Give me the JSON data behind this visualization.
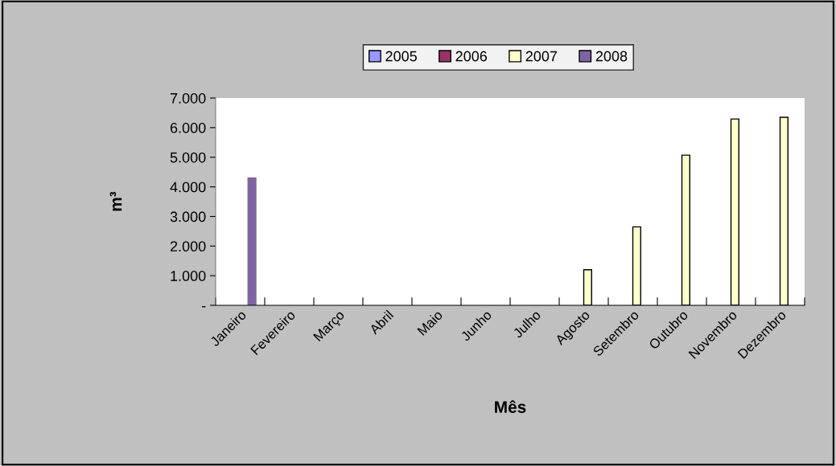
{
  "chart_data": {
    "type": "bar",
    "xlabel": "Mês",
    "ylabel": "m³",
    "categories": [
      "Janeiro",
      "Fevereiro",
      "Março",
      "Abril",
      "Maio",
      "Junho",
      "Julho",
      "Agosto",
      "Setembro",
      "Outubro",
      "Novembro",
      "Dezembro"
    ],
    "series": [
      {
        "name": "2005",
        "color": "#9999ff",
        "values": [
          null,
          null,
          null,
          null,
          null,
          null,
          null,
          null,
          null,
          null,
          null,
          null
        ]
      },
      {
        "name": "2006",
        "color": "#993366",
        "values": [
          null,
          null,
          null,
          null,
          null,
          null,
          null,
          null,
          null,
          null,
          null,
          null
        ]
      },
      {
        "name": "2007",
        "color": "#ffffcc",
        "values": [
          null,
          null,
          null,
          null,
          null,
          null,
          null,
          1200,
          2650,
          5070,
          6290,
          6350
        ]
      },
      {
        "name": "2008",
        "color": "#8064a2",
        "values": [
          4300,
          null,
          null,
          null,
          null,
          null,
          null,
          null,
          null,
          null,
          null,
          null
        ]
      }
    ],
    "ylim": [
      0,
      7000
    ],
    "yticks": [
      {
        "value": 0,
        "label": "-"
      },
      {
        "value": 1000,
        "label": "1.000"
      },
      {
        "value": 2000,
        "label": "2.000"
      },
      {
        "value": 3000,
        "label": "3.000"
      },
      {
        "value": 4000,
        "label": "4.000"
      },
      {
        "value": 5000,
        "label": "5.000"
      },
      {
        "value": 6000,
        "label": "6.000"
      },
      {
        "value": 7000,
        "label": "7.000"
      }
    ],
    "grid": false,
    "legend": "top"
  }
}
